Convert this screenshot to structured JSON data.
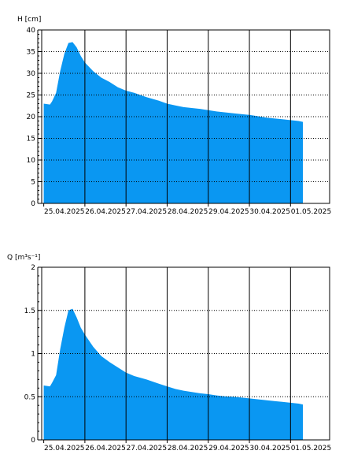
{
  "chart_data": [
    {
      "type": "area",
      "ylabel": "H [cm]",
      "ylim": [
        0,
        40
      ],
      "yticks": [
        0,
        5,
        10,
        15,
        20,
        25,
        30,
        35,
        40
      ],
      "xlabels": [
        "25.04.2025",
        "26.04.2025",
        "27.04.2025",
        "28.04.2025",
        "29.04.2025",
        "30.04.2025",
        "01.05.2025"
      ],
      "xlim_days": [
        -0.05,
        6.95
      ],
      "fill_color": "#0a97f2",
      "grid": true,
      "series": [
        {
          "x_days": [
            0,
            0.15,
            0.2,
            0.3,
            0.4,
            0.5,
            0.6,
            0.7,
            0.8,
            0.9,
            1.0,
            1.2,
            1.4,
            1.6,
            1.8,
            2.0,
            2.2,
            2.5,
            2.8,
            3.0,
            3.2,
            3.4,
            3.6,
            3.8,
            4.0,
            4.2,
            4.4,
            4.6,
            4.8,
            5.0,
            5.2,
            5.4,
            5.6,
            5.8,
            6.0,
            6.2,
            6.3
          ],
          "y": [
            23.0,
            22.8,
            23.5,
            25.5,
            30.5,
            34.5,
            37.0,
            37.2,
            36.0,
            34.0,
            32.5,
            30.5,
            29.0,
            28.0,
            26.8,
            26.0,
            25.5,
            24.5,
            23.7,
            23.0,
            22.6,
            22.2,
            22.0,
            21.8,
            21.5,
            21.2,
            21.0,
            20.8,
            20.6,
            20.4,
            20.1,
            19.8,
            19.6,
            19.4,
            19.2,
            19.0,
            18.8
          ]
        }
      ]
    },
    {
      "type": "area",
      "ylabel": "Q [m³s⁻¹]",
      "ylim": [
        0,
        2
      ],
      "yticks": [
        0,
        0.5,
        1,
        1.5,
        2
      ],
      "ytick_labels": [
        "0",
        "0.5",
        "1",
        "1.5",
        "2"
      ],
      "xlabels": [
        "25.04.2025",
        "26.04.2025",
        "27.04.2025",
        "28.04.2025",
        "29.04.2025",
        "30.04.2025",
        "01.05.2025"
      ],
      "xlim_days": [
        -0.05,
        6.95
      ],
      "fill_color": "#0a97f2",
      "grid": true,
      "series": [
        {
          "x_days": [
            0,
            0.15,
            0.2,
            0.3,
            0.4,
            0.5,
            0.6,
            0.7,
            0.8,
            0.9,
            1.0,
            1.2,
            1.4,
            1.6,
            1.8,
            2.0,
            2.2,
            2.5,
            2.8,
            3.0,
            3.2,
            3.4,
            3.6,
            3.8,
            4.0,
            4.2,
            4.4,
            4.6,
            4.8,
            5.0,
            5.2,
            5.4,
            5.6,
            5.8,
            6.0,
            6.2,
            6.3
          ],
          "y": [
            0.63,
            0.62,
            0.66,
            0.75,
            1.05,
            1.3,
            1.5,
            1.52,
            1.42,
            1.3,
            1.22,
            1.08,
            0.97,
            0.9,
            0.84,
            0.78,
            0.74,
            0.7,
            0.65,
            0.62,
            0.59,
            0.57,
            0.555,
            0.54,
            0.53,
            0.515,
            0.505,
            0.5,
            0.49,
            0.48,
            0.47,
            0.46,
            0.45,
            0.44,
            0.43,
            0.42,
            0.41
          ]
        }
      ]
    }
  ]
}
